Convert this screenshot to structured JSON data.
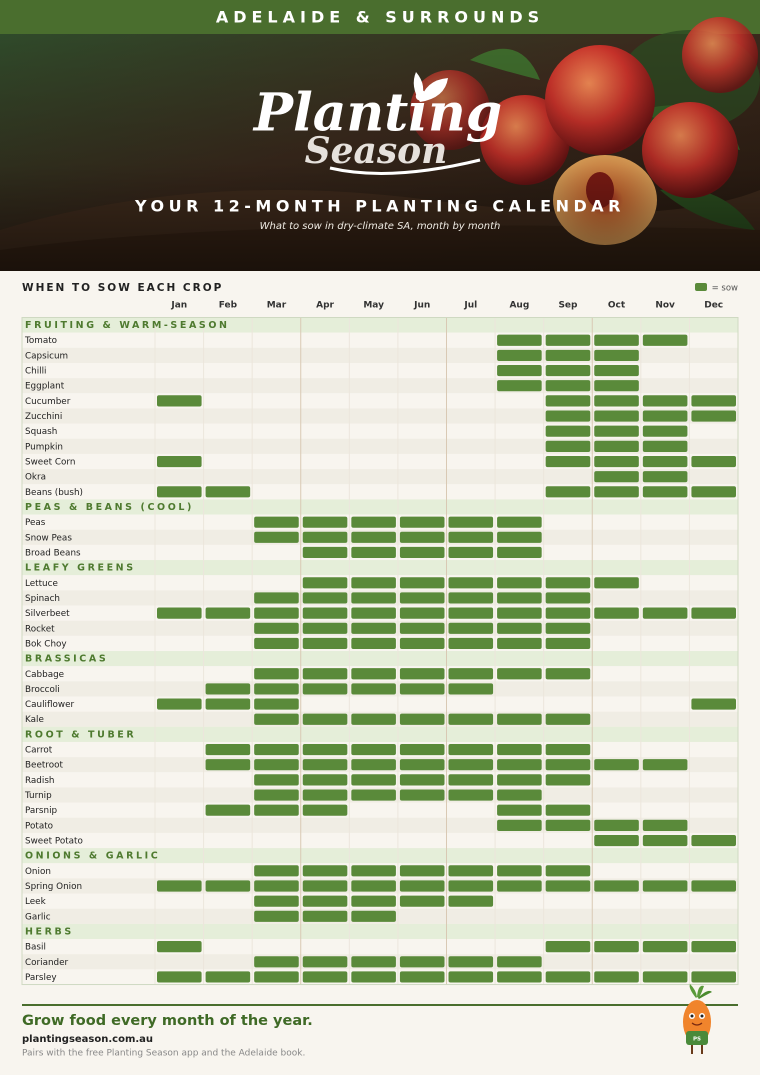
{
  "header": {
    "region": "ADELAIDE & SURROUNDS"
  },
  "hero": {
    "logo_line1": "Planting",
    "logo_line2": "Season",
    "title": "YOUR 12-MONTH PLANTING CALENDAR",
    "subtitle": "What to sow in dry-climate SA, month by month"
  },
  "calendar": {
    "title": "WHEN TO SOW EACH CROP",
    "legend": "= sow",
    "months": [
      "Jan",
      "Feb",
      "Mar",
      "Apr",
      "May",
      "Jun",
      "Jul",
      "Aug",
      "Sep",
      "Oct",
      "Nov",
      "Dec"
    ],
    "groups": [
      {
        "name": "FRUITING & WARM-SEASON",
        "crops": [
          {
            "name": "Tomato",
            "sow": [
              0,
              0,
              0,
              0,
              0,
              0,
              0,
              1,
              1,
              1,
              1,
              0
            ]
          },
          {
            "name": "Capsicum",
            "sow": [
              0,
              0,
              0,
              0,
              0,
              0,
              0,
              1,
              1,
              1,
              0,
              0
            ]
          },
          {
            "name": "Chilli",
            "sow": [
              0,
              0,
              0,
              0,
              0,
              0,
              0,
              1,
              1,
              1,
              0,
              0
            ]
          },
          {
            "name": "Eggplant",
            "sow": [
              0,
              0,
              0,
              0,
              0,
              0,
              0,
              1,
              1,
              1,
              0,
              0
            ]
          },
          {
            "name": "Cucumber",
            "sow": [
              1,
              0,
              0,
              0,
              0,
              0,
              0,
              0,
              1,
              1,
              1,
              1
            ]
          },
          {
            "name": "Zucchini",
            "sow": [
              0,
              0,
              0,
              0,
              0,
              0,
              0,
              0,
              1,
              1,
              1,
              1
            ]
          },
          {
            "name": "Squash",
            "sow": [
              0,
              0,
              0,
              0,
              0,
              0,
              0,
              0,
              1,
              1,
              1,
              0
            ]
          },
          {
            "name": "Pumpkin",
            "sow": [
              0,
              0,
              0,
              0,
              0,
              0,
              0,
              0,
              1,
              1,
              1,
              0
            ]
          },
          {
            "name": "Sweet Corn",
            "sow": [
              1,
              0,
              0,
              0,
              0,
              0,
              0,
              0,
              1,
              1,
              1,
              1
            ]
          },
          {
            "name": "Okra",
            "sow": [
              0,
              0,
              0,
              0,
              0,
              0,
              0,
              0,
              0,
              1,
              1,
              0
            ]
          },
          {
            "name": "Beans (bush)",
            "sow": [
              1,
              1,
              0,
              0,
              0,
              0,
              0,
              0,
              1,
              1,
              1,
              1
            ]
          }
        ]
      },
      {
        "name": "PEAS & BEANS (COOL)",
        "crops": [
          {
            "name": "Peas",
            "sow": [
              0,
              0,
              1,
              1,
              1,
              1,
              1,
              1,
              0,
              0,
              0,
              0
            ]
          },
          {
            "name": "Snow Peas",
            "sow": [
              0,
              0,
              1,
              1,
              1,
              1,
              1,
              1,
              0,
              0,
              0,
              0
            ]
          },
          {
            "name": "Broad Beans",
            "sow": [
              0,
              0,
              0,
              1,
              1,
              1,
              1,
              1,
              0,
              0,
              0,
              0
            ]
          }
        ]
      },
      {
        "name": "LEAFY GREENS",
        "crops": [
          {
            "name": "Lettuce",
            "sow": [
              0,
              0,
              0,
              1,
              1,
              1,
              1,
              1,
              1,
              1,
              0,
              0
            ]
          },
          {
            "name": "Spinach",
            "sow": [
              0,
              0,
              1,
              1,
              1,
              1,
              1,
              1,
              1,
              0,
              0,
              0
            ]
          },
          {
            "name": "Silverbeet",
            "sow": [
              1,
              1,
              1,
              1,
              1,
              1,
              1,
              1,
              1,
              1,
              1,
              1
            ]
          },
          {
            "name": "Rocket",
            "sow": [
              0,
              0,
              1,
              1,
              1,
              1,
              1,
              1,
              1,
              0,
              0,
              0
            ]
          },
          {
            "name": "Bok Choy",
            "sow": [
              0,
              0,
              1,
              1,
              1,
              1,
              1,
              1,
              1,
              0,
              0,
              0
            ]
          }
        ]
      },
      {
        "name": "BRASSICAS",
        "crops": [
          {
            "name": "Cabbage",
            "sow": [
              0,
              0,
              1,
              1,
              1,
              1,
              1,
              1,
              1,
              0,
              0,
              0
            ]
          },
          {
            "name": "Broccoli",
            "sow": [
              0,
              1,
              1,
              1,
              1,
              1,
              1,
              0,
              0,
              0,
              0,
              0
            ]
          },
          {
            "name": "Cauliflower",
            "sow": [
              1,
              1,
              1,
              0,
              0,
              0,
              0,
              0,
              0,
              0,
              0,
              1
            ]
          },
          {
            "name": "Kale",
            "sow": [
              0,
              0,
              1,
              1,
              1,
              1,
              1,
              1,
              1,
              0,
              0,
              0
            ]
          }
        ]
      },
      {
        "name": "ROOT & TUBER",
        "crops": [
          {
            "name": "Carrot",
            "sow": [
              0,
              1,
              1,
              1,
              1,
              1,
              1,
              1,
              1,
              0,
              0,
              0
            ]
          },
          {
            "name": "Beetroot",
            "sow": [
              0,
              1,
              1,
              1,
              1,
              1,
              1,
              1,
              1,
              1,
              1,
              0
            ]
          },
          {
            "name": "Radish",
            "sow": [
              0,
              0,
              1,
              1,
              1,
              1,
              1,
              1,
              1,
              0,
              0,
              0
            ]
          },
          {
            "name": "Turnip",
            "sow": [
              0,
              0,
              1,
              1,
              1,
              1,
              1,
              1,
              0,
              0,
              0,
              0
            ]
          },
          {
            "name": "Parsnip",
            "sow": [
              0,
              1,
              1,
              1,
              0,
              0,
              0,
              1,
              1,
              0,
              0,
              0
            ]
          },
          {
            "name": "Potato",
            "sow": [
              0,
              0,
              0,
              0,
              0,
              0,
              0,
              1,
              1,
              1,
              1,
              0
            ]
          },
          {
            "name": "Sweet Potato",
            "sow": [
              0,
              0,
              0,
              0,
              0,
              0,
              0,
              0,
              0,
              1,
              1,
              1
            ]
          }
        ]
      },
      {
        "name": "ONIONS & GARLIC",
        "crops": [
          {
            "name": "Onion",
            "sow": [
              0,
              0,
              1,
              1,
              1,
              1,
              1,
              1,
              1,
              0,
              0,
              0
            ]
          },
          {
            "name": "Spring Onion",
            "sow": [
              1,
              1,
              1,
              1,
              1,
              1,
              1,
              1,
              1,
              1,
              1,
              1
            ]
          },
          {
            "name": "Leek",
            "sow": [
              0,
              0,
              1,
              1,
              1,
              1,
              1,
              0,
              0,
              0,
              0,
              0
            ]
          },
          {
            "name": "Garlic",
            "sow": [
              0,
              0,
              1,
              1,
              1,
              0,
              0,
              0,
              0,
              0,
              0,
              0
            ]
          }
        ]
      },
      {
        "name": "HERBS",
        "crops": [
          {
            "name": "Basil",
            "sow": [
              1,
              0,
              0,
              0,
              0,
              0,
              0,
              0,
              1,
              1,
              1,
              1
            ]
          },
          {
            "name": "Coriander",
            "sow": [
              0,
              0,
              1,
              1,
              1,
              1,
              1,
              1,
              0,
              0,
              0,
              0
            ]
          },
          {
            "name": "Parsley",
            "sow": [
              1,
              1,
              1,
              1,
              1,
              1,
              1,
              1,
              1,
              1,
              1,
              1
            ]
          }
        ]
      }
    ]
  },
  "footer": {
    "tagline": "Grow food every month of the year.",
    "url": "plantingseason.com.au",
    "note": "Pairs with the free Planting Season app and the Adelaide book.",
    "mascot_badge": "PS"
  }
}
